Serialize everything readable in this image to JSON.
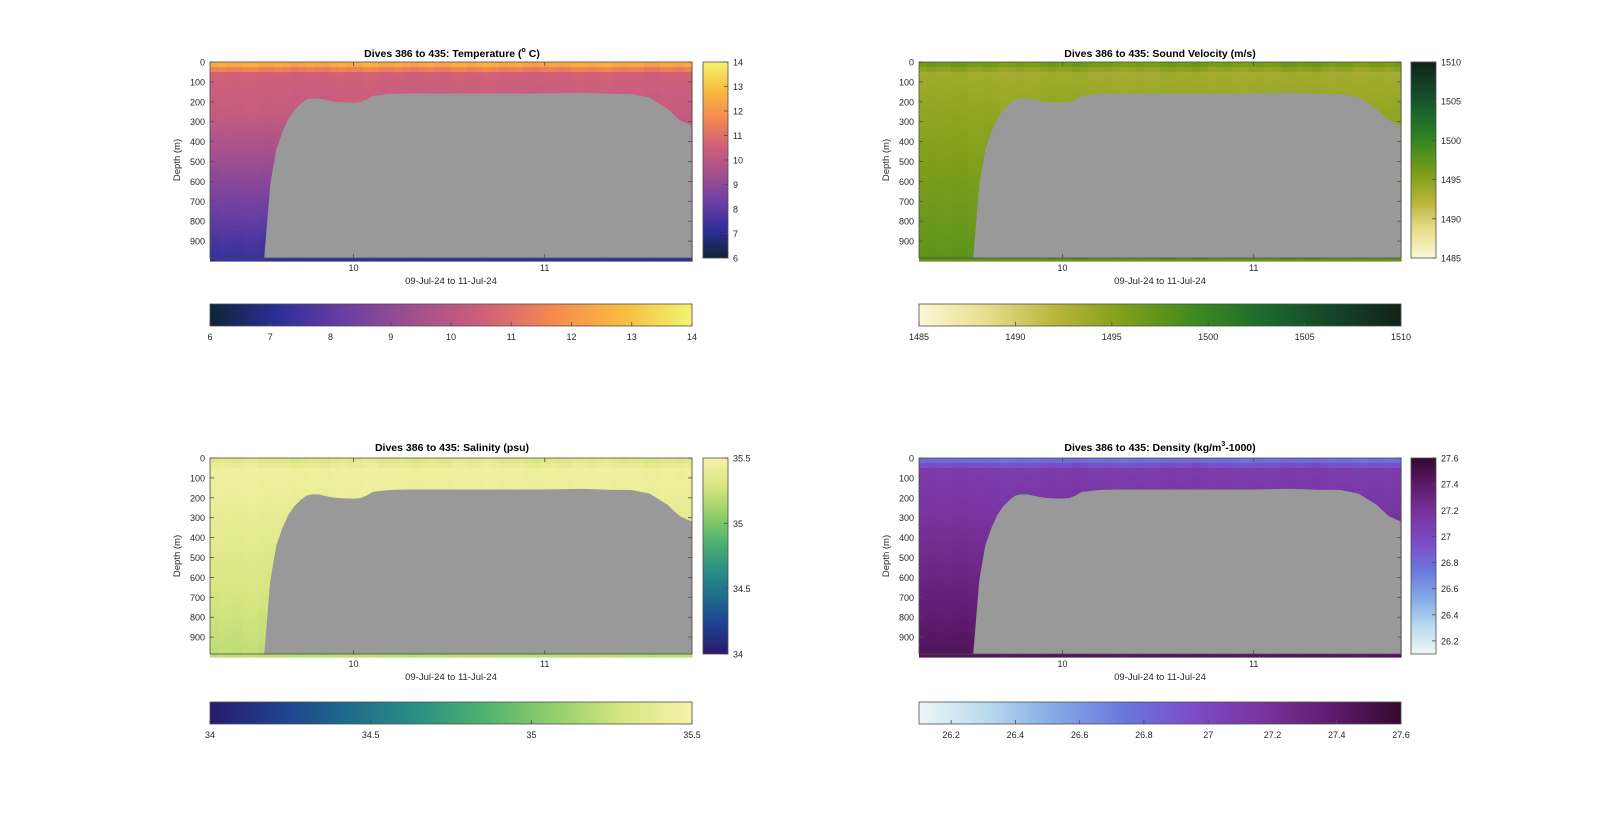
{
  "figure": {
    "background": "#ffffff",
    "seafloor_color": "#999999",
    "x_axis_label": "09-Jul-24 to 11-Jul-24",
    "y_axis_label": "Depth (m)"
  },
  "chart_data": [
    {
      "type": "heatmap",
      "title_prefix": "Dives 386 to 435: Temperature (",
      "title_sup": "o",
      "title_suffix": " C)",
      "xlabel": "09-Jul-24 to 11-Jul-24",
      "ylabel": "Depth (m)",
      "x_range_days": [
        9.25,
        11.77
      ],
      "x_ticks": [
        {
          "value": 10,
          "label": "10"
        },
        {
          "value": 11,
          "label": "11"
        }
      ],
      "y_range_m": [
        0,
        985
      ],
      "y_ticks": [
        0,
        100,
        200,
        300,
        400,
        500,
        600,
        700,
        800,
        900
      ],
      "clim": [
        6,
        14
      ],
      "colorbar_ticks": [
        6,
        7,
        8,
        9,
        10,
        11,
        12,
        13,
        14
      ],
      "colormap": [
        "#0d2438",
        "#2e2e9a",
        "#6c3fa3",
        "#a3508e",
        "#cf607a",
        "#f58a4f",
        "#f8bc3f",
        "#f3f472"
      ],
      "profile": {
        "surface": 12.9,
        "shallow": 10.6,
        "mid": 10.3,
        "deep": 7.3
      },
      "shallow_profile_until_day": 9.55
    },
    {
      "type": "heatmap",
      "title_prefix": "Dives 386 to 435: Sound Velocity (m/s)",
      "title_sup": "",
      "title_suffix": "",
      "xlabel": "09-Jul-24 to 11-Jul-24",
      "ylabel": "Depth (m)",
      "x_range_days": [
        9.25,
        11.77
      ],
      "x_ticks": [
        {
          "value": 10,
          "label": "10"
        },
        {
          "value": 11,
          "label": "11"
        }
      ],
      "y_range_m": [
        0,
        985
      ],
      "y_ticks": [
        0,
        100,
        200,
        300,
        400,
        500,
        600,
        700,
        800,
        900
      ],
      "clim": [
        1485,
        1510
      ],
      "colorbar_ticks": [
        1485,
        1490,
        1495,
        1500,
        1505,
        1510
      ],
      "colormap": [
        "#fbf8d4",
        "#e7dd8c",
        "#b9b43a",
        "#7e9e1a",
        "#3f8a1f",
        "#1c6b2c",
        "#14452a",
        "#102318"
      ],
      "profile": {
        "surface": 1497.0,
        "shallow": 1493.5,
        "mid": 1494.5,
        "deep": 1497.5
      },
      "shallow_profile_until_day": 9.55
    },
    {
      "type": "heatmap",
      "title_prefix": "Dives 386 to 435: Salinity (psu)",
      "title_sup": "",
      "title_suffix": "",
      "xlabel": "09-Jul-24 to 11-Jul-24",
      "ylabel": "Depth (m)",
      "x_range_days": [
        9.25,
        11.77
      ],
      "x_ticks": [
        {
          "value": 10,
          "label": "10"
        },
        {
          "value": 11,
          "label": "11"
        }
      ],
      "y_range_m": [
        0,
        985
      ],
      "y_ticks": [
        0,
        100,
        200,
        300,
        400,
        500,
        600,
        700,
        800,
        900
      ],
      "clim": [
        34,
        35.5
      ],
      "colorbar_ticks": [
        34,
        34.5,
        35,
        35.5
      ],
      "colorbar_labels": [
        "34",
        "34.5",
        "35",
        "35.5"
      ],
      "colormap": [
        "#2a1a6b",
        "#1f3f8f",
        "#1e6b8c",
        "#2a8f85",
        "#4fb270",
        "#93cf6a",
        "#d8e681",
        "#f7f2a8"
      ],
      "profile": {
        "surface": 35.3,
        "shallow": 35.45,
        "mid": 35.4,
        "deep": 35.2
      },
      "shallow_profile_until_day": 9.55
    },
    {
      "type": "heatmap",
      "title_prefix": "Dives 386 to 435: Density (kg/m",
      "title_sup": "3",
      "title_suffix": "-1000)",
      "xlabel": "09-Jul-24 to 11-Jul-24",
      "ylabel": "Depth (m)",
      "x_range_days": [
        9.25,
        11.77
      ],
      "x_ticks": [
        {
          "value": 10,
          "label": "10"
        },
        {
          "value": 11,
          "label": "11"
        }
      ],
      "y_range_m": [
        0,
        985
      ],
      "y_ticks": [
        0,
        100,
        200,
        300,
        400,
        500,
        600,
        700,
        800,
        900
      ],
      "clim": [
        26.1,
        27.6
      ],
      "colorbar_ticks": [
        26.2,
        26.4,
        26.6,
        26.8,
        27,
        27.2,
        27.4,
        27.6
      ],
      "colormap": [
        "#eef6f6",
        "#b9daee",
        "#82a8e6",
        "#6a76dc",
        "#7c4cc6",
        "#7a339e",
        "#5e1b6d",
        "#35082f"
      ],
      "profile": {
        "surface": 26.7,
        "shallow": 27.1,
        "mid": 27.15,
        "deep": 27.45
      },
      "shallow_profile_until_day": 9.55
    }
  ],
  "seafloor_profile": {
    "days": [
      9.25,
      9.54,
      9.55,
      9.6,
      9.65,
      9.7,
      9.75,
      9.8,
      9.9,
      10.0,
      10.05,
      10.1,
      10.2,
      10.3,
      10.5,
      10.8,
      11.0,
      11.2,
      11.35,
      11.45,
      11.55,
      11.6,
      11.65,
      11.7,
      11.77
    ],
    "depth_m": [
      985,
      985,
      700,
      420,
      300,
      230,
      190,
      180,
      200,
      205,
      200,
      170,
      160,
      158,
      158,
      158,
      158,
      155,
      160,
      160,
      180,
      210,
      240,
      290,
      320
    ]
  }
}
